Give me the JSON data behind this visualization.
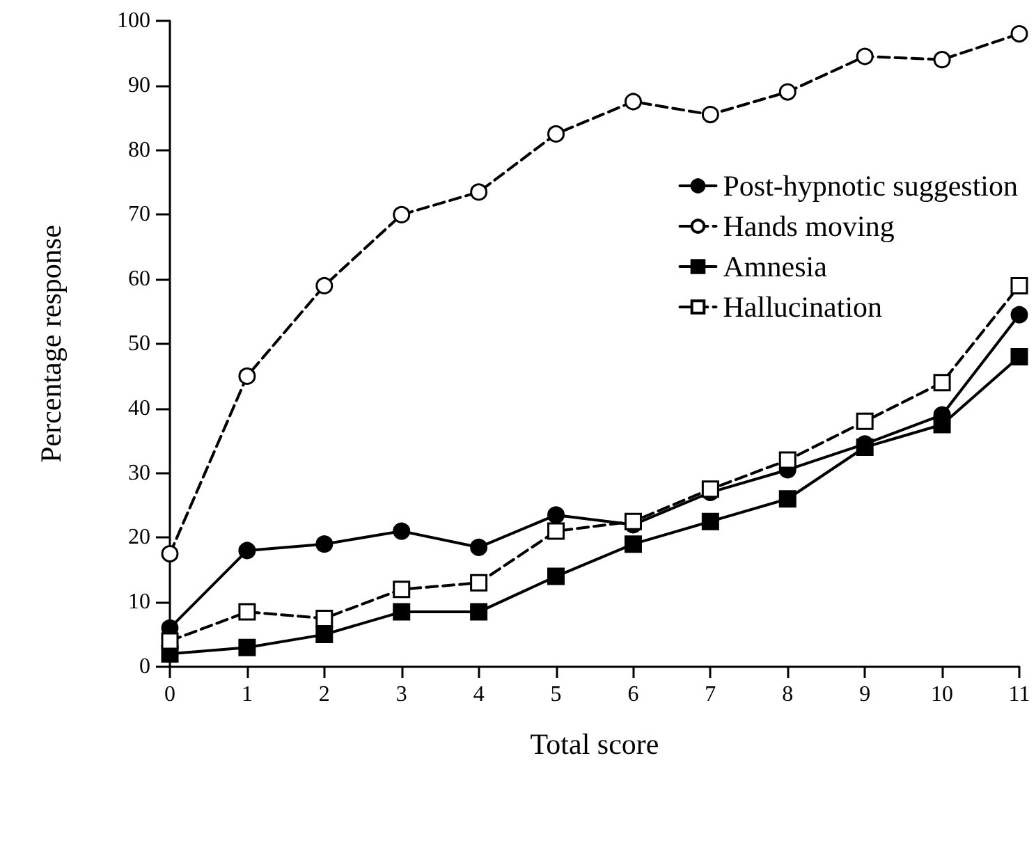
{
  "chart_data": {
    "type": "line",
    "xlabel": "Total score",
    "ylabel": "Percentage response",
    "x": [
      0,
      1,
      2,
      3,
      4,
      5,
      6,
      7,
      8,
      9,
      10,
      11
    ],
    "xlim": [
      0,
      11
    ],
    "xticks": [
      0,
      1,
      2,
      3,
      4,
      5,
      6,
      7,
      8,
      9,
      10,
      11
    ],
    "ylim": [
      0,
      100
    ],
    "yticks": [
      0,
      10,
      20,
      30,
      40,
      50,
      60,
      70,
      80,
      90,
      100
    ],
    "grid": false,
    "legend": "top right",
    "series": [
      {
        "name": "Post-hypnotic suggestion",
        "color": "#000000",
        "marker": "circle",
        "line_style": "solid",
        "values": [
          6,
          18,
          19,
          21,
          18.5,
          23.5,
          22,
          27,
          30.5,
          34.5,
          39,
          54.5
        ]
      },
      {
        "name": "Hands moving",
        "color": "#000000",
        "marker": "circle",
        "line_style": "dashed",
        "values": [
          17.5,
          45,
          59,
          70,
          73.5,
          82.5,
          87.5,
          85.5,
          89,
          94.5,
          94,
          98
        ]
      },
      {
        "name": "Amnesia",
        "color": "#000000",
        "marker": "square",
        "line_style": "solid",
        "values": [
          2,
          3,
          5,
          8.5,
          8.5,
          14,
          19,
          22.5,
          26,
          34,
          37.5,
          48
        ]
      },
      {
        "name": "Hallucination",
        "color": "#000000",
        "marker": "square",
        "line_style": "dashed",
        "values": [
          4,
          8.5,
          7.5,
          12,
          13,
          21,
          22.5,
          27.5,
          32,
          38,
          44,
          59
        ]
      }
    ]
  }
}
